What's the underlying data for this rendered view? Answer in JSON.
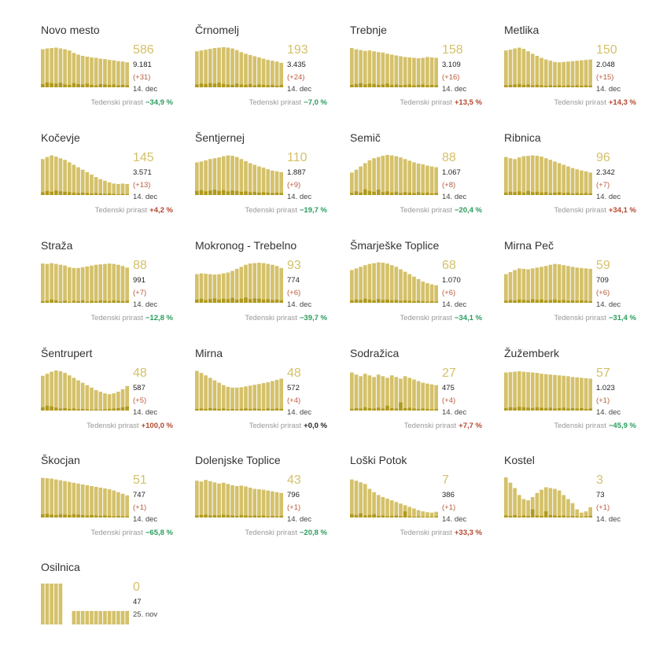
{
  "week_label": "Tedenski prirast",
  "colors": {
    "active": "#d4c16a",
    "new": "#b09a1e",
    "increase": "#b4472f",
    "decrease": "#2a9d5c",
    "value": "#d4c16a"
  },
  "chart_data": [
    {
      "type": "bar",
      "name": "Novo mesto",
      "value": "586",
      "total": "9.181",
      "change": "(+31)",
      "date": "14. dec",
      "week": "−34,9 %",
      "trend": "down",
      "values": [
        0.93,
        0.95,
        0.96,
        0.97,
        0.95,
        0.93,
        0.9,
        0.84,
        0.8,
        0.77,
        0.75,
        0.73,
        0.72,
        0.7,
        0.69,
        0.67,
        0.66,
        0.64,
        0.63,
        0.61
      ],
      "new": [
        0.08,
        0.12,
        0.1,
        0.09,
        0.11,
        0.07,
        0.06,
        0.1,
        0.08,
        0.07,
        0.09,
        0.06,
        0.05,
        0.08,
        0.07,
        0.06,
        0.07,
        0.05,
        0.06,
        0.05
      ]
    },
    {
      "type": "bar",
      "name": "Črnomelj",
      "value": "193",
      "total": "3.435",
      "change": "(+24)",
      "date": "14. dec",
      "week": "−7,0 %",
      "trend": "down",
      "values": [
        0.88,
        0.9,
        0.92,
        0.94,
        0.96,
        0.97,
        0.98,
        0.97,
        0.95,
        0.91,
        0.86,
        0.82,
        0.79,
        0.76,
        0.73,
        0.7,
        0.67,
        0.65,
        0.63,
        0.6
      ],
      "new": [
        0.07,
        0.09,
        0.08,
        0.1,
        0.09,
        0.11,
        0.08,
        0.07,
        0.06,
        0.09,
        0.07,
        0.06,
        0.08,
        0.05,
        0.07,
        0.06,
        0.05,
        0.06,
        0.04,
        0.06
      ]
    },
    {
      "type": "bar",
      "name": "Trebnje",
      "value": "158",
      "total": "3.109",
      "change": "(+16)",
      "date": "14. dec",
      "week": "+13,5 %",
      "trend": "up",
      "values": [
        0.96,
        0.93,
        0.91,
        0.89,
        0.9,
        0.88,
        0.86,
        0.85,
        0.82,
        0.8,
        0.78,
        0.76,
        0.74,
        0.73,
        0.72,
        0.71,
        0.72,
        0.74,
        0.73,
        0.72
      ],
      "new": [
        0.06,
        0.08,
        0.1,
        0.07,
        0.09,
        0.08,
        0.06,
        0.07,
        0.09,
        0.06,
        0.07,
        0.05,
        0.06,
        0.07,
        0.05,
        0.06,
        0.07,
        0.05,
        0.06,
        0.05
      ]
    },
    {
      "type": "bar",
      "name": "Metlika",
      "value": "150",
      "total": "2.048",
      "change": "(+15)",
      "date": "14. dec",
      "week": "+14,3 %",
      "trend": "up",
      "values": [
        0.9,
        0.92,
        0.95,
        0.97,
        0.94,
        0.88,
        0.82,
        0.77,
        0.72,
        0.68,
        0.65,
        0.62,
        0.61,
        0.62,
        0.63,
        0.64,
        0.65,
        0.66,
        0.67,
        0.68
      ],
      "new": [
        0.05,
        0.06,
        0.07,
        0.08,
        0.06,
        0.07,
        0.05,
        0.06,
        0.05,
        0.04,
        0.05,
        0.04,
        0.05,
        0.04,
        0.05,
        0.04,
        0.05,
        0.04,
        0.05,
        0.04
      ]
    },
    {
      "type": "bar",
      "name": "Kočevje",
      "value": "145",
      "total": "3.571",
      "change": "(+13)",
      "date": "14. dec",
      "week": "+4,2 %",
      "trend": "up",
      "values": [
        0.88,
        0.93,
        0.97,
        0.94,
        0.9,
        0.86,
        0.8,
        0.74,
        0.68,
        0.62,
        0.56,
        0.5,
        0.44,
        0.39,
        0.35,
        0.31,
        0.28,
        0.27,
        0.28,
        0.27
      ],
      "new": [
        0.07,
        0.1,
        0.08,
        0.11,
        0.09,
        0.08,
        0.07,
        0.06,
        0.05,
        0.06,
        0.05,
        0.04,
        0.05,
        0.04,
        0.03,
        0.04,
        0.03,
        0.02,
        0.03,
        0.02
      ]
    },
    {
      "type": "bar",
      "name": "Šentjernej",
      "value": "110",
      "total": "1.887",
      "change": "(+9)",
      "date": "14. dec",
      "week": "−19,7 %",
      "trend": "down",
      "values": [
        0.8,
        0.82,
        0.85,
        0.88,
        0.9,
        0.92,
        0.95,
        0.97,
        0.96,
        0.93,
        0.88,
        0.83,
        0.78,
        0.74,
        0.7,
        0.67,
        0.63,
        0.6,
        0.58,
        0.56
      ],
      "new": [
        0.1,
        0.12,
        0.09,
        0.11,
        0.13,
        0.1,
        0.12,
        0.09,
        0.11,
        0.1,
        0.08,
        0.09,
        0.07,
        0.08,
        0.06,
        0.07,
        0.06,
        0.05,
        0.06,
        0.05
      ]
    },
    {
      "type": "bar",
      "name": "Semič",
      "value": "88",
      "total": "1.067",
      "change": "(+8)",
      "date": "14. dec",
      "week": "−20,4 %",
      "trend": "down",
      "values": [
        0.55,
        0.62,
        0.7,
        0.78,
        0.85,
        0.9,
        0.93,
        0.96,
        0.98,
        0.97,
        0.95,
        0.92,
        0.88,
        0.84,
        0.8,
        0.77,
        0.75,
        0.72,
        0.7,
        0.68
      ],
      "new": [
        0.05,
        0.09,
        0.06,
        0.14,
        0.1,
        0.08,
        0.13,
        0.07,
        0.09,
        0.06,
        0.08,
        0.05,
        0.07,
        0.06,
        0.05,
        0.07,
        0.05,
        0.06,
        0.04,
        0.05
      ]
    },
    {
      "type": "bar",
      "name": "Ribnica",
      "value": "96",
      "total": "2.342",
      "change": "(+7)",
      "date": "14. dec",
      "week": "+34,1 %",
      "trend": "up",
      "values": [
        0.93,
        0.9,
        0.88,
        0.92,
        0.95,
        0.96,
        0.97,
        0.96,
        0.94,
        0.9,
        0.86,
        0.82,
        0.78,
        0.74,
        0.7,
        0.66,
        0.63,
        0.6,
        0.58,
        0.55
      ],
      "new": [
        0.06,
        0.08,
        0.07,
        0.09,
        0.06,
        0.1,
        0.07,
        0.08,
        0.06,
        0.07,
        0.05,
        0.06,
        0.07,
        0.05,
        0.06,
        0.04,
        0.05,
        0.04,
        0.05,
        0.04
      ]
    },
    {
      "type": "bar",
      "name": "Straža",
      "value": "88",
      "total": "991",
      "change": "(+7)",
      "date": "14. dec",
      "week": "−12,8 %",
      "trend": "down",
      "values": [
        0.96,
        0.95,
        0.97,
        0.95,
        0.93,
        0.91,
        0.87,
        0.85,
        0.85,
        0.87,
        0.89,
        0.91,
        0.93,
        0.94,
        0.95,
        0.96,
        0.95,
        0.93,
        0.9,
        0.86
      ],
      "new": [
        0.04,
        0.05,
        0.08,
        0.06,
        0.03,
        0.05,
        0.02,
        0.05,
        0.04,
        0.06,
        0.03,
        0.05,
        0.04,
        0.06,
        0.05,
        0.04,
        0.06,
        0.05,
        0.04,
        0.05
      ]
    },
    {
      "type": "bar",
      "name": "Mokronog - Trebelno",
      "value": "93",
      "total": "774",
      "change": "(+6)",
      "date": "14. dec",
      "week": "−39,7 %",
      "trend": "down",
      "values": [
        0.7,
        0.72,
        0.71,
        0.7,
        0.69,
        0.7,
        0.72,
        0.74,
        0.78,
        0.83,
        0.88,
        0.93,
        0.96,
        0.97,
        0.98,
        0.97,
        0.95,
        0.93,
        0.9,
        0.85
      ],
      "new": [
        0.08,
        0.1,
        0.07,
        0.09,
        0.11,
        0.08,
        0.1,
        0.09,
        0.12,
        0.08,
        0.1,
        0.13,
        0.09,
        0.11,
        0.1,
        0.08,
        0.09,
        0.07,
        0.08,
        0.06
      ]
    },
    {
      "type": "bar",
      "name": "Šmarješke Toplice",
      "value": "68",
      "total": "1.070",
      "change": "(+6)",
      "date": "14. dec",
      "week": "−34,1 %",
      "trend": "down",
      "values": [
        0.8,
        0.84,
        0.88,
        0.92,
        0.95,
        0.97,
        0.99,
        0.98,
        0.96,
        0.92,
        0.88,
        0.82,
        0.76,
        0.7,
        0.64,
        0.58,
        0.52,
        0.48,
        0.45,
        0.43
      ],
      "new": [
        0.06,
        0.08,
        0.07,
        0.1,
        0.08,
        0.06,
        0.09,
        0.07,
        0.08,
        0.06,
        0.07,
        0.05,
        0.06,
        0.05,
        0.04,
        0.05,
        0.04,
        0.03,
        0.04,
        0.03
      ]
    },
    {
      "type": "bar",
      "name": "Mirna Peč",
      "value": "59",
      "total": "709",
      "change": "(+6)",
      "date": "14. dec",
      "week": "−31,4 %",
      "trend": "down",
      "values": [
        0.7,
        0.75,
        0.8,
        0.84,
        0.83,
        0.82,
        0.84,
        0.86,
        0.88,
        0.9,
        0.93,
        0.95,
        0.94,
        0.92,
        0.9,
        0.88,
        0.86,
        0.85,
        0.84,
        0.83
      ],
      "new": [
        0.05,
        0.07,
        0.06,
        0.08,
        0.07,
        0.06,
        0.09,
        0.07,
        0.08,
        0.06,
        0.07,
        0.08,
        0.06,
        0.07,
        0.05,
        0.06,
        0.05,
        0.06,
        0.05,
        0.04
      ]
    },
    {
      "type": "bar",
      "name": "Šentrupert",
      "value": "48",
      "total": "587",
      "change": "(+5)",
      "date": "14. dec",
      "week": "+100,0 %",
      "trend": "up",
      "values": [
        0.85,
        0.9,
        0.95,
        0.98,
        0.96,
        0.92,
        0.86,
        0.8,
        0.74,
        0.68,
        0.62,
        0.56,
        0.5,
        0.46,
        0.42,
        0.4,
        0.42,
        0.46,
        0.52,
        0.6
      ],
      "new": [
        0.08,
        0.12,
        0.1,
        0.07,
        0.05,
        0.06,
        0.04,
        0.05,
        0.03,
        0.04,
        0.03,
        0.02,
        0.03,
        0.02,
        0.03,
        0.04,
        0.05,
        0.06,
        0.08,
        0.1
      ]
    },
    {
      "type": "bar",
      "name": "Mirna",
      "value": "48",
      "total": "572",
      "change": "(+4)",
      "date": "14. dec",
      "week": "+0,0 %",
      "trend": "flat",
      "values": [
        0.97,
        0.92,
        0.86,
        0.8,
        0.74,
        0.68,
        0.62,
        0.58,
        0.56,
        0.56,
        0.57,
        0.59,
        0.61,
        0.63,
        0.65,
        0.67,
        0.69,
        0.72,
        0.75,
        0.78
      ],
      "new": [
        0.04,
        0.05,
        0.04,
        0.06,
        0.05,
        0.04,
        0.05,
        0.03,
        0.04,
        0.03,
        0.04,
        0.05,
        0.04,
        0.05,
        0.04,
        0.03,
        0.05,
        0.04,
        0.05,
        0.04
      ]
    },
    {
      "type": "bar",
      "name": "Sodražica",
      "value": "27",
      "total": "475",
      "change": "(+4)",
      "date": "14. dec",
      "week": "+7,7 %",
      "trend": "up",
      "values": [
        0.93,
        0.88,
        0.84,
        0.9,
        0.86,
        0.82,
        0.88,
        0.84,
        0.8,
        0.86,
        0.82,
        0.78,
        0.84,
        0.8,
        0.76,
        0.72,
        0.68,
        0.66,
        0.64,
        0.62
      ],
      "new": [
        0.04,
        0.06,
        0.05,
        0.08,
        0.06,
        0.05,
        0.07,
        0.05,
        0.12,
        0.06,
        0.05,
        0.2,
        0.06,
        0.07,
        0.05,
        0.04,
        0.05,
        0.04,
        0.03,
        0.04
      ]
    },
    {
      "type": "bar",
      "name": "Žužemberk",
      "value": "57",
      "total": "1.023",
      "change": "(+1)",
      "date": "14. dec",
      "week": "−45,9 %",
      "trend": "down",
      "values": [
        0.93,
        0.94,
        0.95,
        0.96,
        0.95,
        0.94,
        0.93,
        0.92,
        0.9,
        0.89,
        0.88,
        0.87,
        0.86,
        0.85,
        0.84,
        0.82,
        0.81,
        0.8,
        0.79,
        0.78
      ],
      "new": [
        0.06,
        0.08,
        0.07,
        0.09,
        0.08,
        0.07,
        0.06,
        0.08,
        0.07,
        0.06,
        0.07,
        0.05,
        0.06,
        0.07,
        0.05,
        0.06,
        0.05,
        0.06,
        0.04,
        0.05
      ]
    },
    {
      "type": "bar",
      "name": "Škocjan",
      "value": "51",
      "total": "747",
      "change": "(+1)",
      "date": "14. dec",
      "week": "−65,8 %",
      "trend": "down",
      "values": [
        0.97,
        0.96,
        0.95,
        0.93,
        0.91,
        0.89,
        0.87,
        0.85,
        0.83,
        0.81,
        0.79,
        0.77,
        0.75,
        0.73,
        0.71,
        0.69,
        0.66,
        0.62,
        0.58,
        0.54
      ],
      "new": [
        0.08,
        0.09,
        0.07,
        0.06,
        0.08,
        0.07,
        0.06,
        0.08,
        0.07,
        0.06,
        0.05,
        0.06,
        0.05,
        0.04,
        0.05,
        0.04,
        0.03,
        0.04,
        0.03,
        0.03
      ]
    },
    {
      "type": "bar",
      "name": "Dolenjske Toplice",
      "value": "43",
      "total": "796",
      "change": "(+1)",
      "date": "14. dec",
      "week": "−20,8 %",
      "trend": "down",
      "values": [
        0.9,
        0.88,
        0.92,
        0.89,
        0.86,
        0.83,
        0.85,
        0.82,
        0.79,
        0.77,
        0.78,
        0.76,
        0.73,
        0.7,
        0.69,
        0.68,
        0.66,
        0.64,
        0.62,
        0.6
      ],
      "new": [
        0.05,
        0.06,
        0.07,
        0.05,
        0.06,
        0.05,
        0.07,
        0.06,
        0.05,
        0.04,
        0.06,
        0.05,
        0.04,
        0.05,
        0.04,
        0.05,
        0.03,
        0.04,
        0.03,
        0.04
      ]
    },
    {
      "type": "bar",
      "name": "Loški Potok",
      "value": "7",
      "total": "386",
      "change": "(+1)",
      "date": "14. dec",
      "week": "+33,3 %",
      "trend": "up",
      "values": [
        0.93,
        0.9,
        0.86,
        0.82,
        0.7,
        0.62,
        0.55,
        0.5,
        0.46,
        0.42,
        0.38,
        0.34,
        0.3,
        0.26,
        0.22,
        0.18,
        0.15,
        0.13,
        0.12,
        0.14
      ],
      "new": [
        0.08,
        0.06,
        0.1,
        0.05,
        0.06,
        0.08,
        0.04,
        0.05,
        0.03,
        0.04,
        0.05,
        0.03,
        0.15,
        0.03,
        0.02,
        0.03,
        0.02,
        0.02,
        0.02,
        0.03
      ]
    },
    {
      "type": "bar",
      "name": "Kostel",
      "value": "3",
      "total": "73",
      "change": "(+1)",
      "date": "14. dec",
      "week": "",
      "trend": "flat",
      "values": [
        0.98,
        0.85,
        0.72,
        0.55,
        0.45,
        0.42,
        0.5,
        0.6,
        0.68,
        0.74,
        0.72,
        0.7,
        0.66,
        0.55,
        0.45,
        0.35,
        0.2,
        0.12,
        0.15,
        0.25
      ],
      "new": [
        0.05,
        0.04,
        0.06,
        0.03,
        0.05,
        0.04,
        0.2,
        0.05,
        0.04,
        0.15,
        0.06,
        0.05,
        0.04,
        0.05,
        0.03,
        0.04,
        0.03,
        0.02,
        0.03,
        0.04
      ]
    },
    {
      "type": "bar",
      "name": "Osilnica",
      "value": "0",
      "total": "47",
      "change": "",
      "date": "25. nov",
      "week": "",
      "trend": "flat",
      "values": [
        1.0,
        1.0,
        1.0,
        1.0,
        1.0,
        0,
        0,
        0.33,
        0.33,
        0.33,
        0.33,
        0.33,
        0.33,
        0.33,
        0.33,
        0.33,
        0.33,
        0.33,
        0.33,
        0.33
      ],
      "new": [
        0,
        0,
        0,
        0,
        0,
        0,
        0,
        0,
        0,
        0,
        0,
        0,
        0,
        0,
        0,
        0,
        0,
        0,
        0,
        0
      ]
    }
  ]
}
